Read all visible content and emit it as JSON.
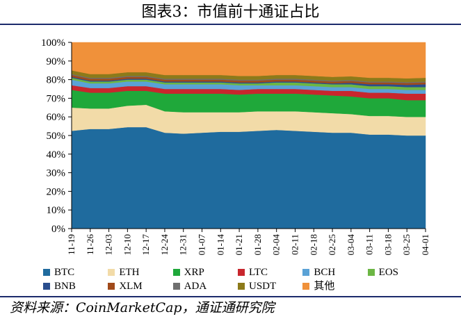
{
  "header": {
    "title": "图表3：市值前十通证占比"
  },
  "footer": {
    "source": "资料来源：CoinMarketCap，通证通研究院"
  },
  "colors": {
    "BTC": "#1f6b9e",
    "ETH": "#f2dba8",
    "XRP": "#1fa83a",
    "LTC": "#c8262d",
    "BCH": "#5aa2d6",
    "EOS": "#6cb644",
    "BNB": "#2a4e8e",
    "XLM": "#a04a1a",
    "ADA": "#6f6f6f",
    "USDT": "#8c7a1a",
    "其他": "#f0913a"
  },
  "chart_data": {
    "type": "area",
    "stacked": true,
    "title": "图表3：市值前十通证占比",
    "xlabel": "",
    "ylabel": "",
    "ylim": [
      0,
      100
    ],
    "yticks": [
      "0%",
      "10%",
      "20%",
      "30%",
      "40%",
      "50%",
      "60%",
      "70%",
      "80%",
      "90%",
      "100%"
    ],
    "x": [
      "11-19",
      "11-26",
      "12-03",
      "12-10",
      "12-17",
      "12-24",
      "12-31",
      "01-07",
      "01-14",
      "01-21",
      "01-28",
      "02-04",
      "02-11",
      "02-18",
      "02-25",
      "03-04",
      "03-11",
      "03-18",
      "03-25",
      "04-01"
    ],
    "legend_position": "bottom",
    "grid": false,
    "series": [
      {
        "name": "BTC",
        "values": [
          52.5,
          53.5,
          53.5,
          54.5,
          54.5,
          51.5,
          51.0,
          51.5,
          52.0,
          52.0,
          52.5,
          53.0,
          52.5,
          52.0,
          51.5,
          51.5,
          50.5,
          50.5,
          50.0,
          50.0
        ]
      },
      {
        "name": "ETH",
        "values": [
          12.5,
          11.0,
          11.0,
          11.5,
          12.0,
          11.5,
          11.5,
          11.0,
          10.5,
          10.5,
          10.5,
          10.0,
          10.5,
          10.5,
          10.5,
          10.0,
          10.0,
          10.0,
          10.0,
          10.0
        ]
      },
      {
        "name": "XRP",
        "values": [
          9.5,
          8.5,
          8.5,
          8.0,
          7.5,
          9.5,
          10.0,
          10.0,
          10.0,
          9.5,
          9.5,
          9.5,
          9.5,
          9.5,
          9.5,
          9.5,
          9.5,
          9.5,
          9.0,
          9.0
        ]
      },
      {
        "name": "LTC",
        "values": [
          2.5,
          2.5,
          2.5,
          2.5,
          2.5,
          2.5,
          2.5,
          2.5,
          2.5,
          2.5,
          2.5,
          2.5,
          2.5,
          2.5,
          2.5,
          3.0,
          3.0,
          3.0,
          3.5,
          3.5
        ]
      },
      {
        "name": "BCH",
        "values": [
          3.0,
          2.5,
          2.5,
          2.5,
          2.5,
          2.5,
          2.5,
          2.5,
          2.5,
          2.5,
          2.0,
          2.0,
          2.0,
          2.0,
          2.0,
          2.0,
          2.0,
          2.0,
          2.0,
          2.0
        ]
      },
      {
        "name": "EOS",
        "values": [
          1.0,
          1.0,
          1.0,
          1.0,
          1.0,
          1.0,
          1.0,
          1.0,
          1.0,
          1.0,
          1.0,
          1.5,
          1.5,
          1.5,
          1.5,
          1.5,
          1.5,
          1.5,
          1.5,
          1.5
        ]
      },
      {
        "name": "BNB",
        "values": [
          0.5,
          0.5,
          0.5,
          0.5,
          0.5,
          0.5,
          0.5,
          0.5,
          0.5,
          0.5,
          0.5,
          0.5,
          0.5,
          0.5,
          0.5,
          0.8,
          1.0,
          1.0,
          1.2,
          1.5
        ]
      },
      {
        "name": "XLM",
        "values": [
          1.0,
          1.0,
          1.0,
          1.0,
          1.0,
          1.0,
          1.0,
          1.0,
          1.0,
          1.0,
          1.0,
          1.0,
          1.0,
          1.0,
          1.0,
          1.0,
          1.0,
          1.0,
          1.0,
          1.0
        ]
      },
      {
        "name": "ADA",
        "values": [
          0.5,
          0.5,
          0.5,
          0.5,
          0.5,
          0.5,
          0.5,
          0.5,
          0.5,
          0.5,
          0.5,
          0.5,
          0.5,
          0.5,
          0.5,
          0.5,
          0.5,
          0.5,
          0.5,
          0.5
        ]
      },
      {
        "name": "USDT",
        "values": [
          2.0,
          2.0,
          2.0,
          2.0,
          2.0,
          2.0,
          2.0,
          2.0,
          2.0,
          2.0,
          2.0,
          2.0,
          2.0,
          2.0,
          2.0,
          2.0,
          2.0,
          2.0,
          2.0,
          2.0
        ]
      },
      {
        "name": "其他",
        "values": [
          15.0,
          17.0,
          17.0,
          16.0,
          16.0,
          17.5,
          17.5,
          17.5,
          17.5,
          18.0,
          18.0,
          17.5,
          17.5,
          18.0,
          18.5,
          18.2,
          19.0,
          19.0,
          19.3,
          19.0
        ]
      }
    ]
  }
}
